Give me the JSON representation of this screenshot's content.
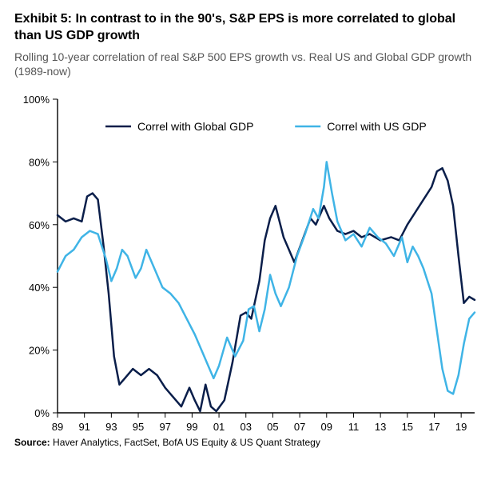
{
  "title": "Exhibit 5: In contrast to in the 90's, S&P EPS is more correlated to global than US GDP growth",
  "subtitle": "Rolling 10-year correlation of real S&P 500 EPS growth vs. Real US and Global GDP growth (1989-now)",
  "source_label": "Source:",
  "source_text": "Haver Analytics, FactSet, BofA US Equity & US Quant Strategy",
  "chart": {
    "type": "line",
    "background_color": "#ffffff",
    "axis_color": "#000000",
    "grid": false,
    "title_fontsize": 16,
    "title_fontweight": "bold",
    "subtitle_fontsize": 14,
    "subtitle_color": "#555555",
    "axis_tick_fontsize": 13,
    "legend_fontsize": 14,
    "legend_position": "top-center-inside",
    "line_width": 2.5,
    "y": {
      "min": 0,
      "max": 100,
      "ticks": [
        0,
        20,
        40,
        60,
        80,
        100
      ],
      "tick_labels": [
        "0%",
        "20%",
        "40%",
        "60%",
        "80%",
        "100%"
      ]
    },
    "x": {
      "min": 1989,
      "max": 2020,
      "ticks": [
        1989,
        1991,
        1993,
        1995,
        1997,
        1999,
        2001,
        2003,
        2005,
        2007,
        2009,
        2011,
        2013,
        2015,
        2017,
        2019
      ],
      "tick_labels": [
        "89",
        "91",
        "93",
        "95",
        "97",
        "99",
        "01",
        "03",
        "05",
        "07",
        "09",
        "11",
        "13",
        "15",
        "17",
        "19"
      ]
    },
    "series": [
      {
        "name": "Correl with Global GDP",
        "color": "#0a1e4a",
        "points": [
          [
            1989,
            63
          ],
          [
            1989.6,
            61
          ],
          [
            1990.2,
            62
          ],
          [
            1990.8,
            61
          ],
          [
            1991.2,
            69
          ],
          [
            1991.6,
            70
          ],
          [
            1992.0,
            68
          ],
          [
            1992.4,
            54
          ],
          [
            1992.8,
            38
          ],
          [
            1993.2,
            18
          ],
          [
            1993.6,
            9
          ],
          [
            1994.0,
            11
          ],
          [
            1994.6,
            14
          ],
          [
            1995.2,
            12
          ],
          [
            1995.8,
            14
          ],
          [
            1996.4,
            12
          ],
          [
            1997.0,
            8
          ],
          [
            1997.6,
            5
          ],
          [
            1998.2,
            2
          ],
          [
            1998.8,
            8
          ],
          [
            1999.2,
            4
          ],
          [
            1999.6,
            0.5
          ],
          [
            2000.0,
            9
          ],
          [
            2000.4,
            2
          ],
          [
            2000.8,
            0.5
          ],
          [
            2001.4,
            4
          ],
          [
            2002.0,
            16
          ],
          [
            2002.6,
            31
          ],
          [
            2003.0,
            32
          ],
          [
            2003.4,
            30
          ],
          [
            2004.0,
            42
          ],
          [
            2004.4,
            55
          ],
          [
            2004.8,
            62
          ],
          [
            2005.2,
            66
          ],
          [
            2005.8,
            56
          ],
          [
            2006.2,
            52
          ],
          [
            2006.6,
            48
          ],
          [
            2007.2,
            55
          ],
          [
            2007.8,
            62
          ],
          [
            2008.2,
            60
          ],
          [
            2008.8,
            66
          ],
          [
            2009.2,
            62
          ],
          [
            2009.8,
            58
          ],
          [
            2010.4,
            57
          ],
          [
            2011.0,
            58
          ],
          [
            2011.6,
            56
          ],
          [
            2012.2,
            57
          ],
          [
            2013.0,
            55
          ],
          [
            2013.8,
            56
          ],
          [
            2014.4,
            55
          ],
          [
            2015.0,
            60
          ],
          [
            2015.6,
            64
          ],
          [
            2016.2,
            68
          ],
          [
            2016.8,
            72
          ],
          [
            2017.2,
            77
          ],
          [
            2017.6,
            78
          ],
          [
            2018.0,
            74
          ],
          [
            2018.4,
            66
          ],
          [
            2018.8,
            50
          ],
          [
            2019.2,
            35
          ],
          [
            2019.6,
            37
          ],
          [
            2020.0,
            36
          ]
        ]
      },
      {
        "name": "Correl with US GDP",
        "color": "#3fb4e6",
        "points": [
          [
            1989,
            45
          ],
          [
            1989.6,
            50
          ],
          [
            1990.2,
            52
          ],
          [
            1990.8,
            56
          ],
          [
            1991.4,
            58
          ],
          [
            1992.0,
            57
          ],
          [
            1992.6,
            49
          ],
          [
            1993.0,
            42
          ],
          [
            1993.4,
            46
          ],
          [
            1993.8,
            52
          ],
          [
            1994.2,
            50
          ],
          [
            1994.8,
            43
          ],
          [
            1995.2,
            46
          ],
          [
            1995.6,
            52
          ],
          [
            1996.2,
            46
          ],
          [
            1996.8,
            40
          ],
          [
            1997.4,
            38
          ],
          [
            1998.0,
            35
          ],
          [
            1998.6,
            30
          ],
          [
            1999.2,
            25
          ],
          [
            1999.8,
            19
          ],
          [
            2000.2,
            15
          ],
          [
            2000.6,
            11
          ],
          [
            2001.0,
            15
          ],
          [
            2001.6,
            24
          ],
          [
            2002.2,
            18
          ],
          [
            2002.8,
            23
          ],
          [
            2003.2,
            33
          ],
          [
            2003.6,
            34
          ],
          [
            2004.0,
            26
          ],
          [
            2004.4,
            33
          ],
          [
            2004.8,
            44
          ],
          [
            2005.2,
            38
          ],
          [
            2005.6,
            34
          ],
          [
            2006.2,
            40
          ],
          [
            2006.8,
            50
          ],
          [
            2007.4,
            57
          ],
          [
            2008.0,
            65
          ],
          [
            2008.4,
            62
          ],
          [
            2008.8,
            72
          ],
          [
            2009.0,
            80
          ],
          [
            2009.4,
            70
          ],
          [
            2009.8,
            61
          ],
          [
            2010.4,
            55
          ],
          [
            2011.0,
            57
          ],
          [
            2011.6,
            53
          ],
          [
            2012.2,
            59
          ],
          [
            2012.8,
            56
          ],
          [
            2013.4,
            54
          ],
          [
            2014.0,
            50
          ],
          [
            2014.6,
            56
          ],
          [
            2015.0,
            48
          ],
          [
            2015.4,
            53
          ],
          [
            2015.8,
            50
          ],
          [
            2016.2,
            46
          ],
          [
            2016.8,
            38
          ],
          [
            2017.2,
            26
          ],
          [
            2017.6,
            14
          ],
          [
            2018.0,
            7
          ],
          [
            2018.4,
            6
          ],
          [
            2018.8,
            12
          ],
          [
            2019.2,
            22
          ],
          [
            2019.6,
            30
          ],
          [
            2020.0,
            32
          ]
        ]
      }
    ]
  }
}
